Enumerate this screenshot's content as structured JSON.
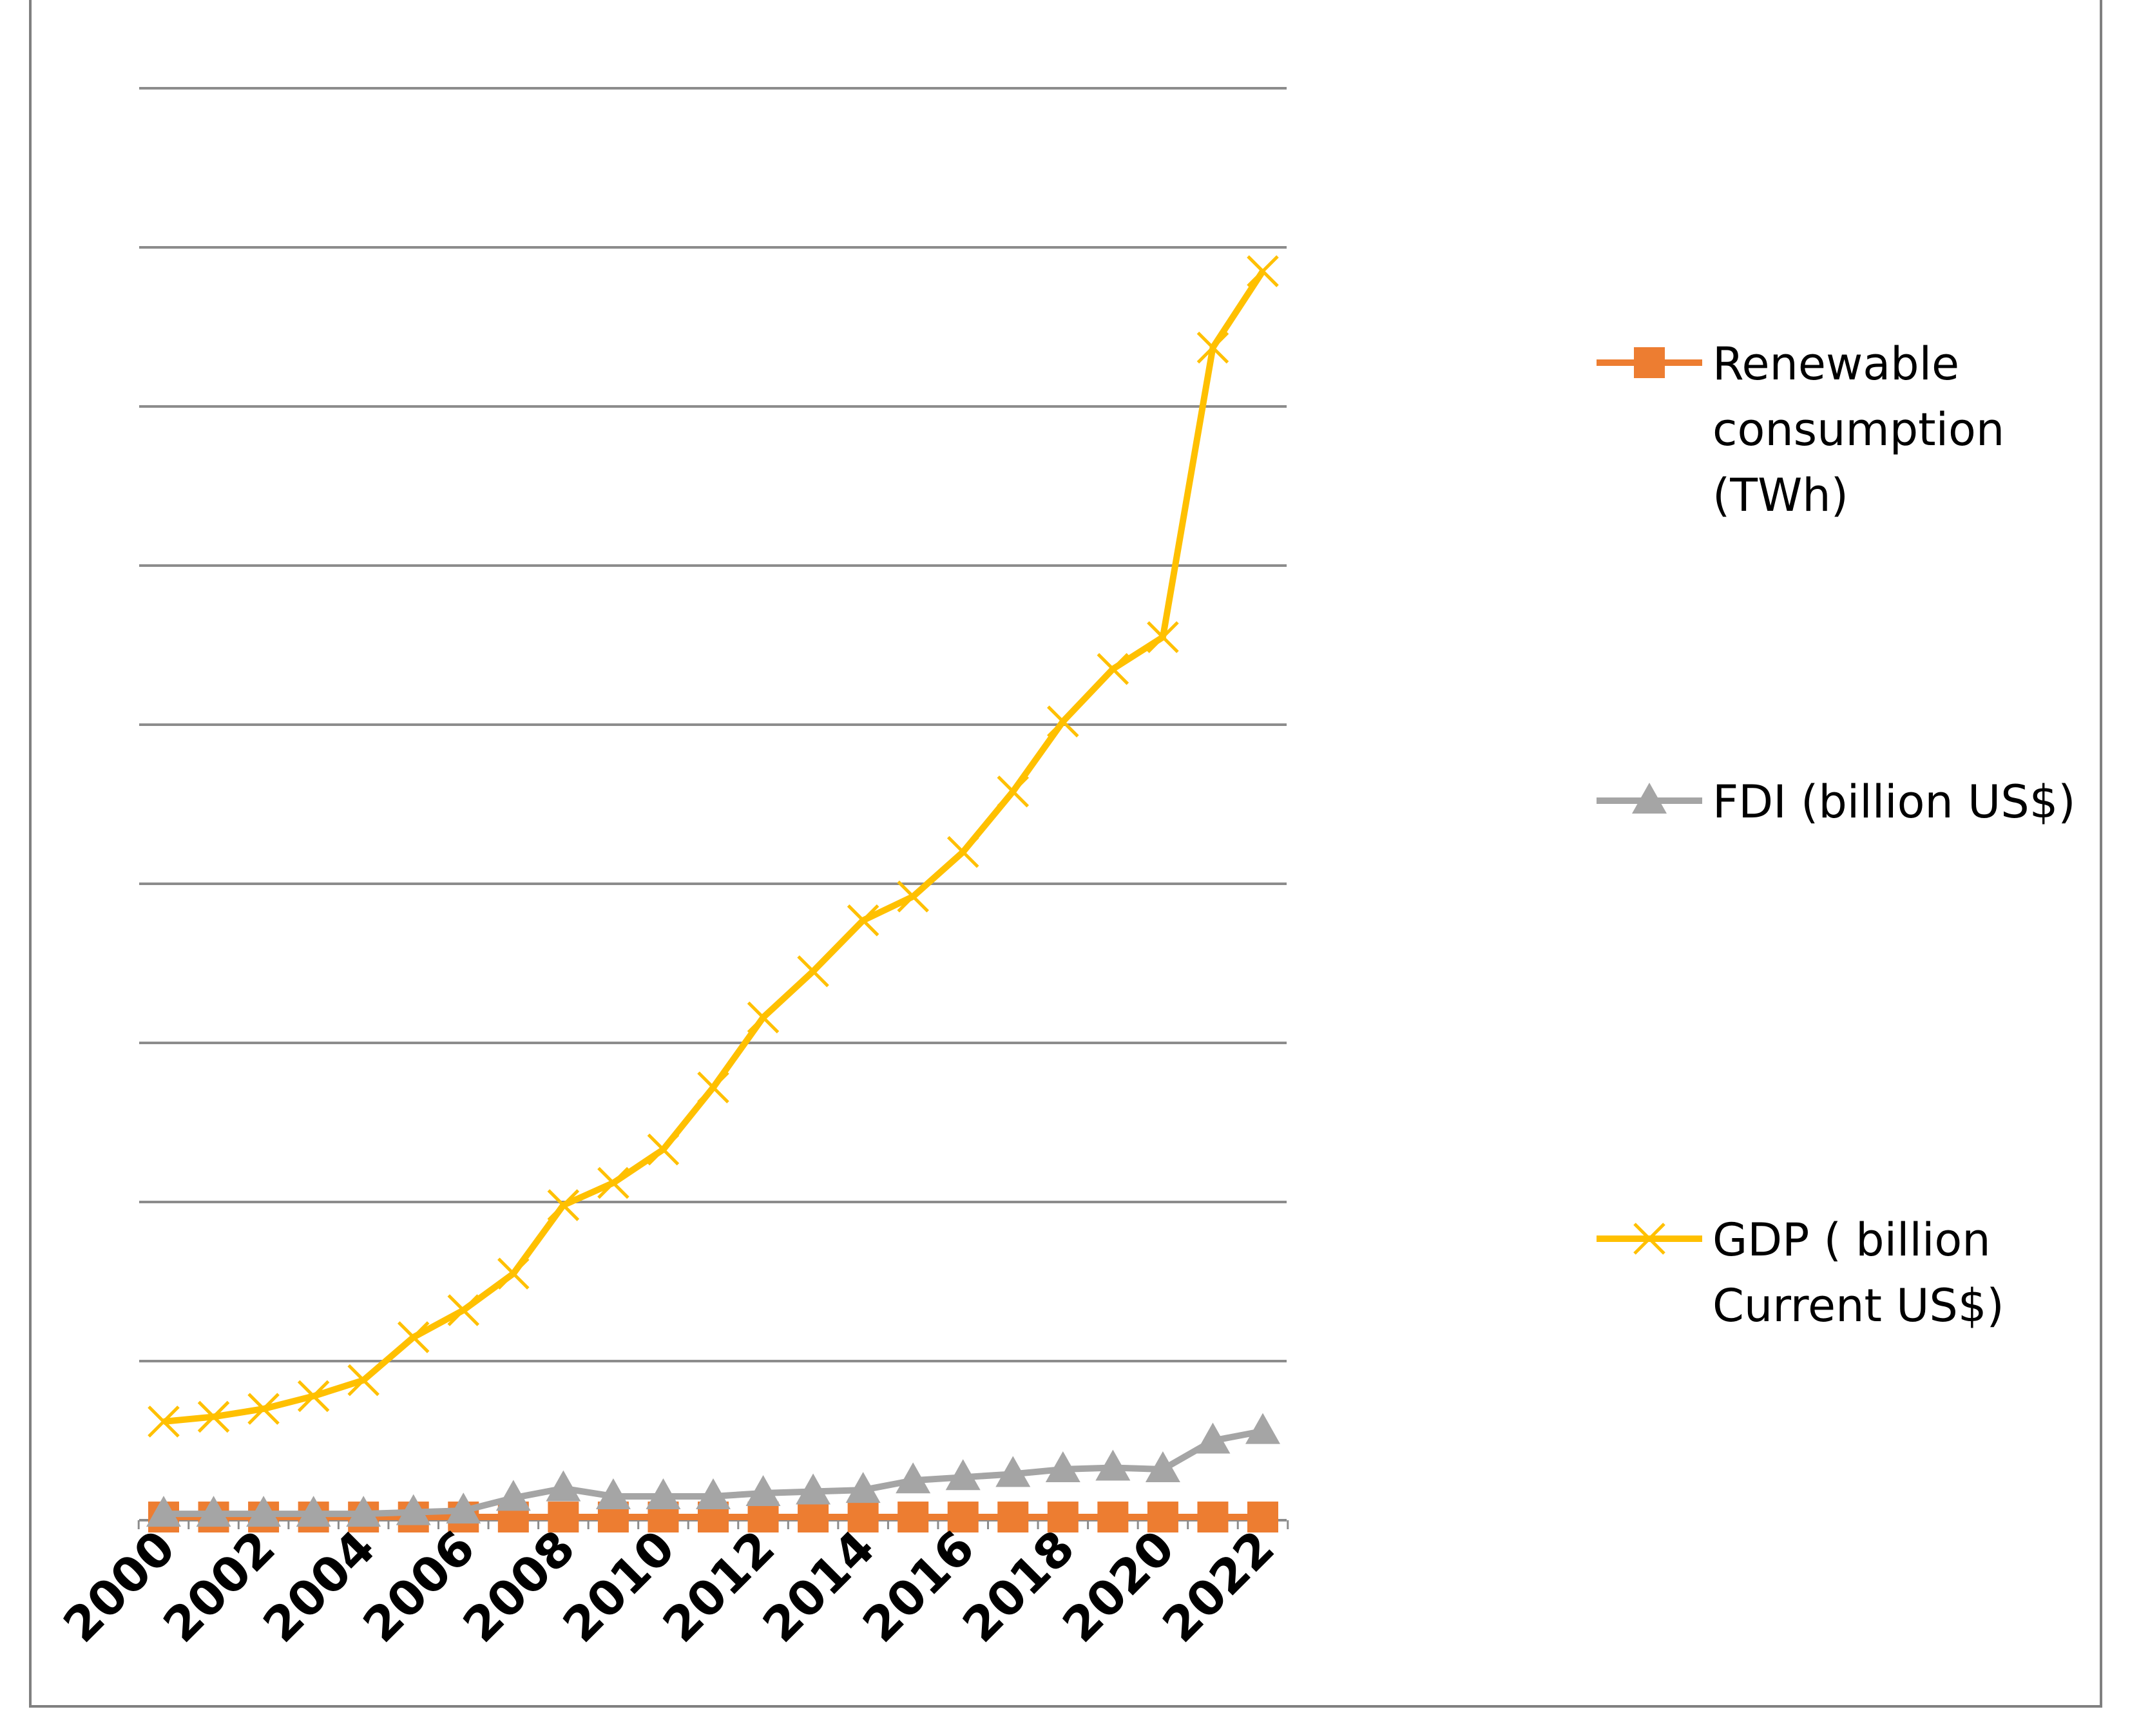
{
  "chart_data": {
    "type": "line",
    "title": "",
    "xlabel": "",
    "ylabel": "",
    "ylim": [
      0,
      9
    ],
    "grid": true,
    "legend_position": "right",
    "x": [
      2000,
      2001,
      2002,
      2003,
      2004,
      2005,
      2006,
      2007,
      2008,
      2009,
      2010,
      2011,
      2012,
      2013,
      2014,
      2015,
      2016,
      2017,
      2018,
      2019,
      2020,
      2021,
      2022
    ],
    "x_tick_labels": [
      "2000",
      "2002",
      "2004",
      "2006",
      "2008",
      "2010",
      "2012",
      "2014",
      "2016",
      "2018",
      "2020",
      "2022"
    ],
    "series": [
      {
        "name": "Renewable consumption (TWh)",
        "legend_lines": [
          "Renewable",
          "consumption",
          "(TWh)"
        ],
        "color": "#ED7D31",
        "marker": "square",
        "values": [
          0.02,
          0.02,
          0.02,
          0.02,
          0.02,
          0.02,
          0.02,
          0.02,
          0.02,
          0.02,
          0.02,
          0.02,
          0.02,
          0.02,
          0.02,
          0.02,
          0.02,
          0.02,
          0.02,
          0.02,
          0.02,
          0.02,
          0.02
        ]
      },
      {
        "name": "FDI (billion US$)",
        "legend_lines": [
          "FDI (billion US$)"
        ],
        "color": "#A5A5A5",
        "marker": "triangle",
        "values": [
          0.04,
          0.04,
          0.04,
          0.04,
          0.04,
          0.05,
          0.06,
          0.14,
          0.2,
          0.15,
          0.15,
          0.15,
          0.17,
          0.18,
          0.19,
          0.25,
          0.27,
          0.29,
          0.32,
          0.33,
          0.32,
          0.5,
          0.56
        ]
      },
      {
        "name": "GDP ( billion Current US$)",
        "legend_lines": [
          "GDP ( billion",
          "Current US$)"
        ],
        "color": "#FFC000",
        "marker": "x",
        "values": [
          0.62,
          0.65,
          0.7,
          0.78,
          0.88,
          1.15,
          1.32,
          1.55,
          1.98,
          2.12,
          2.33,
          2.72,
          3.16,
          3.45,
          3.77,
          3.92,
          4.2,
          4.58,
          5.02,
          5.35,
          5.55,
          7.37,
          7.85
        ]
      }
    ]
  }
}
